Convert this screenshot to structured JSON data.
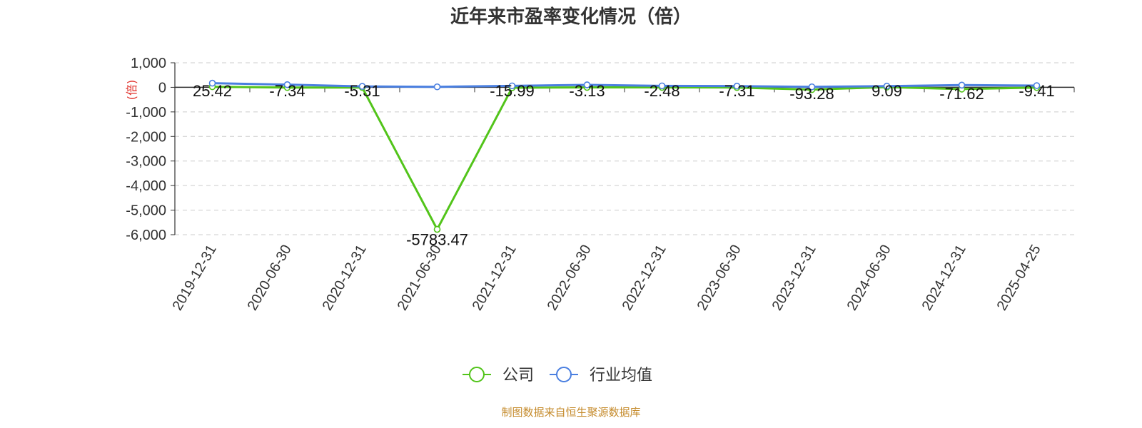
{
  "chart_data": {
    "type": "line",
    "title": "近年来市盈率变化情况（倍）",
    "ylabel": "(倍)",
    "categories": [
      "2019-12-31",
      "2020-06-30",
      "2020-12-31",
      "2021-06-30",
      "2021-12-31",
      "2022-06-30",
      "2022-12-31",
      "2023-06-30",
      "2023-12-31",
      "2024-06-30",
      "2024-12-31",
      "2025-04-25"
    ],
    "ylim": [
      -6000,
      1000
    ],
    "yticks": [
      1000,
      0,
      -1000,
      -2000,
      -3000,
      -4000,
      -5000,
      -6000
    ],
    "ytick_labels": [
      "1,000",
      "0",
      "-1,000",
      "-2,000",
      "-3,000",
      "-4,000",
      "-5,000",
      "-6,000"
    ],
    "grid": true,
    "legend_position": "bottom-center",
    "series": [
      {
        "name": "公司",
        "color": "#52c41a",
        "values": [
          25.42,
          -7.34,
          -5.31,
          -5783.47,
          -15.99,
          -3.13,
          -2.48,
          -7.31,
          -93.28,
          9.09,
          -71.62,
          -9.41
        ],
        "labels": [
          "25.42",
          "-7.34",
          "-5.31",
          "-5783.47",
          "-15.99",
          "-3.13",
          "-2.48",
          "-7.31",
          "-93.28",
          "9.09",
          "-71.62",
          "-9.41"
        ]
      },
      {
        "name": "行业均值",
        "color": "#4a7fe0",
        "values": [
          170,
          110,
          40,
          20,
          60,
          100,
          60,
          50,
          20,
          50,
          90,
          70
        ]
      }
    ]
  },
  "footer": {
    "source": "制图数据来自恒生聚源数据库"
  }
}
